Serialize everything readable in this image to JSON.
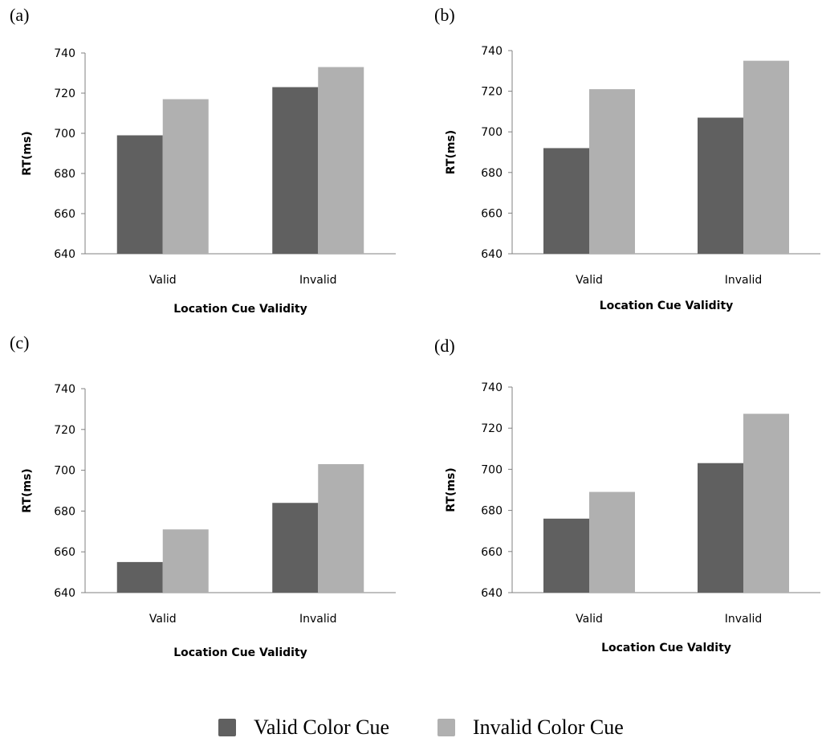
{
  "panels": [
    {
      "label": "(a)"
    },
    {
      "label": "(b)"
    },
    {
      "label": "(c)"
    },
    {
      "label": "(d)"
    }
  ],
  "legend": {
    "items": [
      {
        "label": "Valid Color Cue",
        "color": "#606060"
      },
      {
        "label": "Invalid Color Cue",
        "color": "#b0b0b0"
      }
    ]
  },
  "chart_data": [
    {
      "type": "bar",
      "panel": "(a)",
      "categories": [
        "Valid",
        "Invalid"
      ],
      "series": [
        {
          "name": "Valid Color Cue",
          "values": [
            699,
            723
          ]
        },
        {
          "name": "Invalid Color Cue",
          "values": [
            717,
            733
          ]
        }
      ],
      "xlabel": "Location Cue Validity",
      "ylabel": "RT(ms)",
      "ylim": [
        640,
        740
      ],
      "yticks": [
        640,
        660,
        680,
        700,
        720,
        740
      ],
      "grid": false
    },
    {
      "type": "bar",
      "panel": "(b)",
      "categories": [
        "Valid",
        "Invalid"
      ],
      "series": [
        {
          "name": "Valid Color Cue",
          "values": [
            692,
            707
          ]
        },
        {
          "name": "Invalid Color Cue",
          "values": [
            721,
            735
          ]
        }
      ],
      "xlabel": "Location Cue Validity",
      "ylabel": "RT(ms)",
      "ylim": [
        640,
        740
      ],
      "yticks": [
        640,
        660,
        680,
        700,
        720,
        740
      ],
      "grid": false
    },
    {
      "type": "bar",
      "panel": "(c)",
      "categories": [
        "Valid",
        "Invalid"
      ],
      "series": [
        {
          "name": "Valid Color Cue",
          "values": [
            655,
            684
          ]
        },
        {
          "name": "Invalid Color Cue",
          "values": [
            671,
            703
          ]
        }
      ],
      "xlabel": "Location Cue Validity",
      "ylabel": "RT(ms)",
      "ylim": [
        640,
        740
      ],
      "yticks": [
        640,
        660,
        680,
        700,
        720,
        740
      ],
      "grid": false
    },
    {
      "type": "bar",
      "panel": "(d)",
      "categories": [
        "Valid",
        "Invalid"
      ],
      "series": [
        {
          "name": "Valid Color Cue",
          "values": [
            676,
            703
          ]
        },
        {
          "name": "Invalid Color Cue",
          "values": [
            689,
            727
          ]
        }
      ],
      "xlabel": "Location Cue Valdity",
      "ylabel": "RT(ms)",
      "ylim": [
        640,
        740
      ],
      "yticks": [
        640,
        660,
        680,
        700,
        720,
        740
      ],
      "grid": false
    }
  ]
}
